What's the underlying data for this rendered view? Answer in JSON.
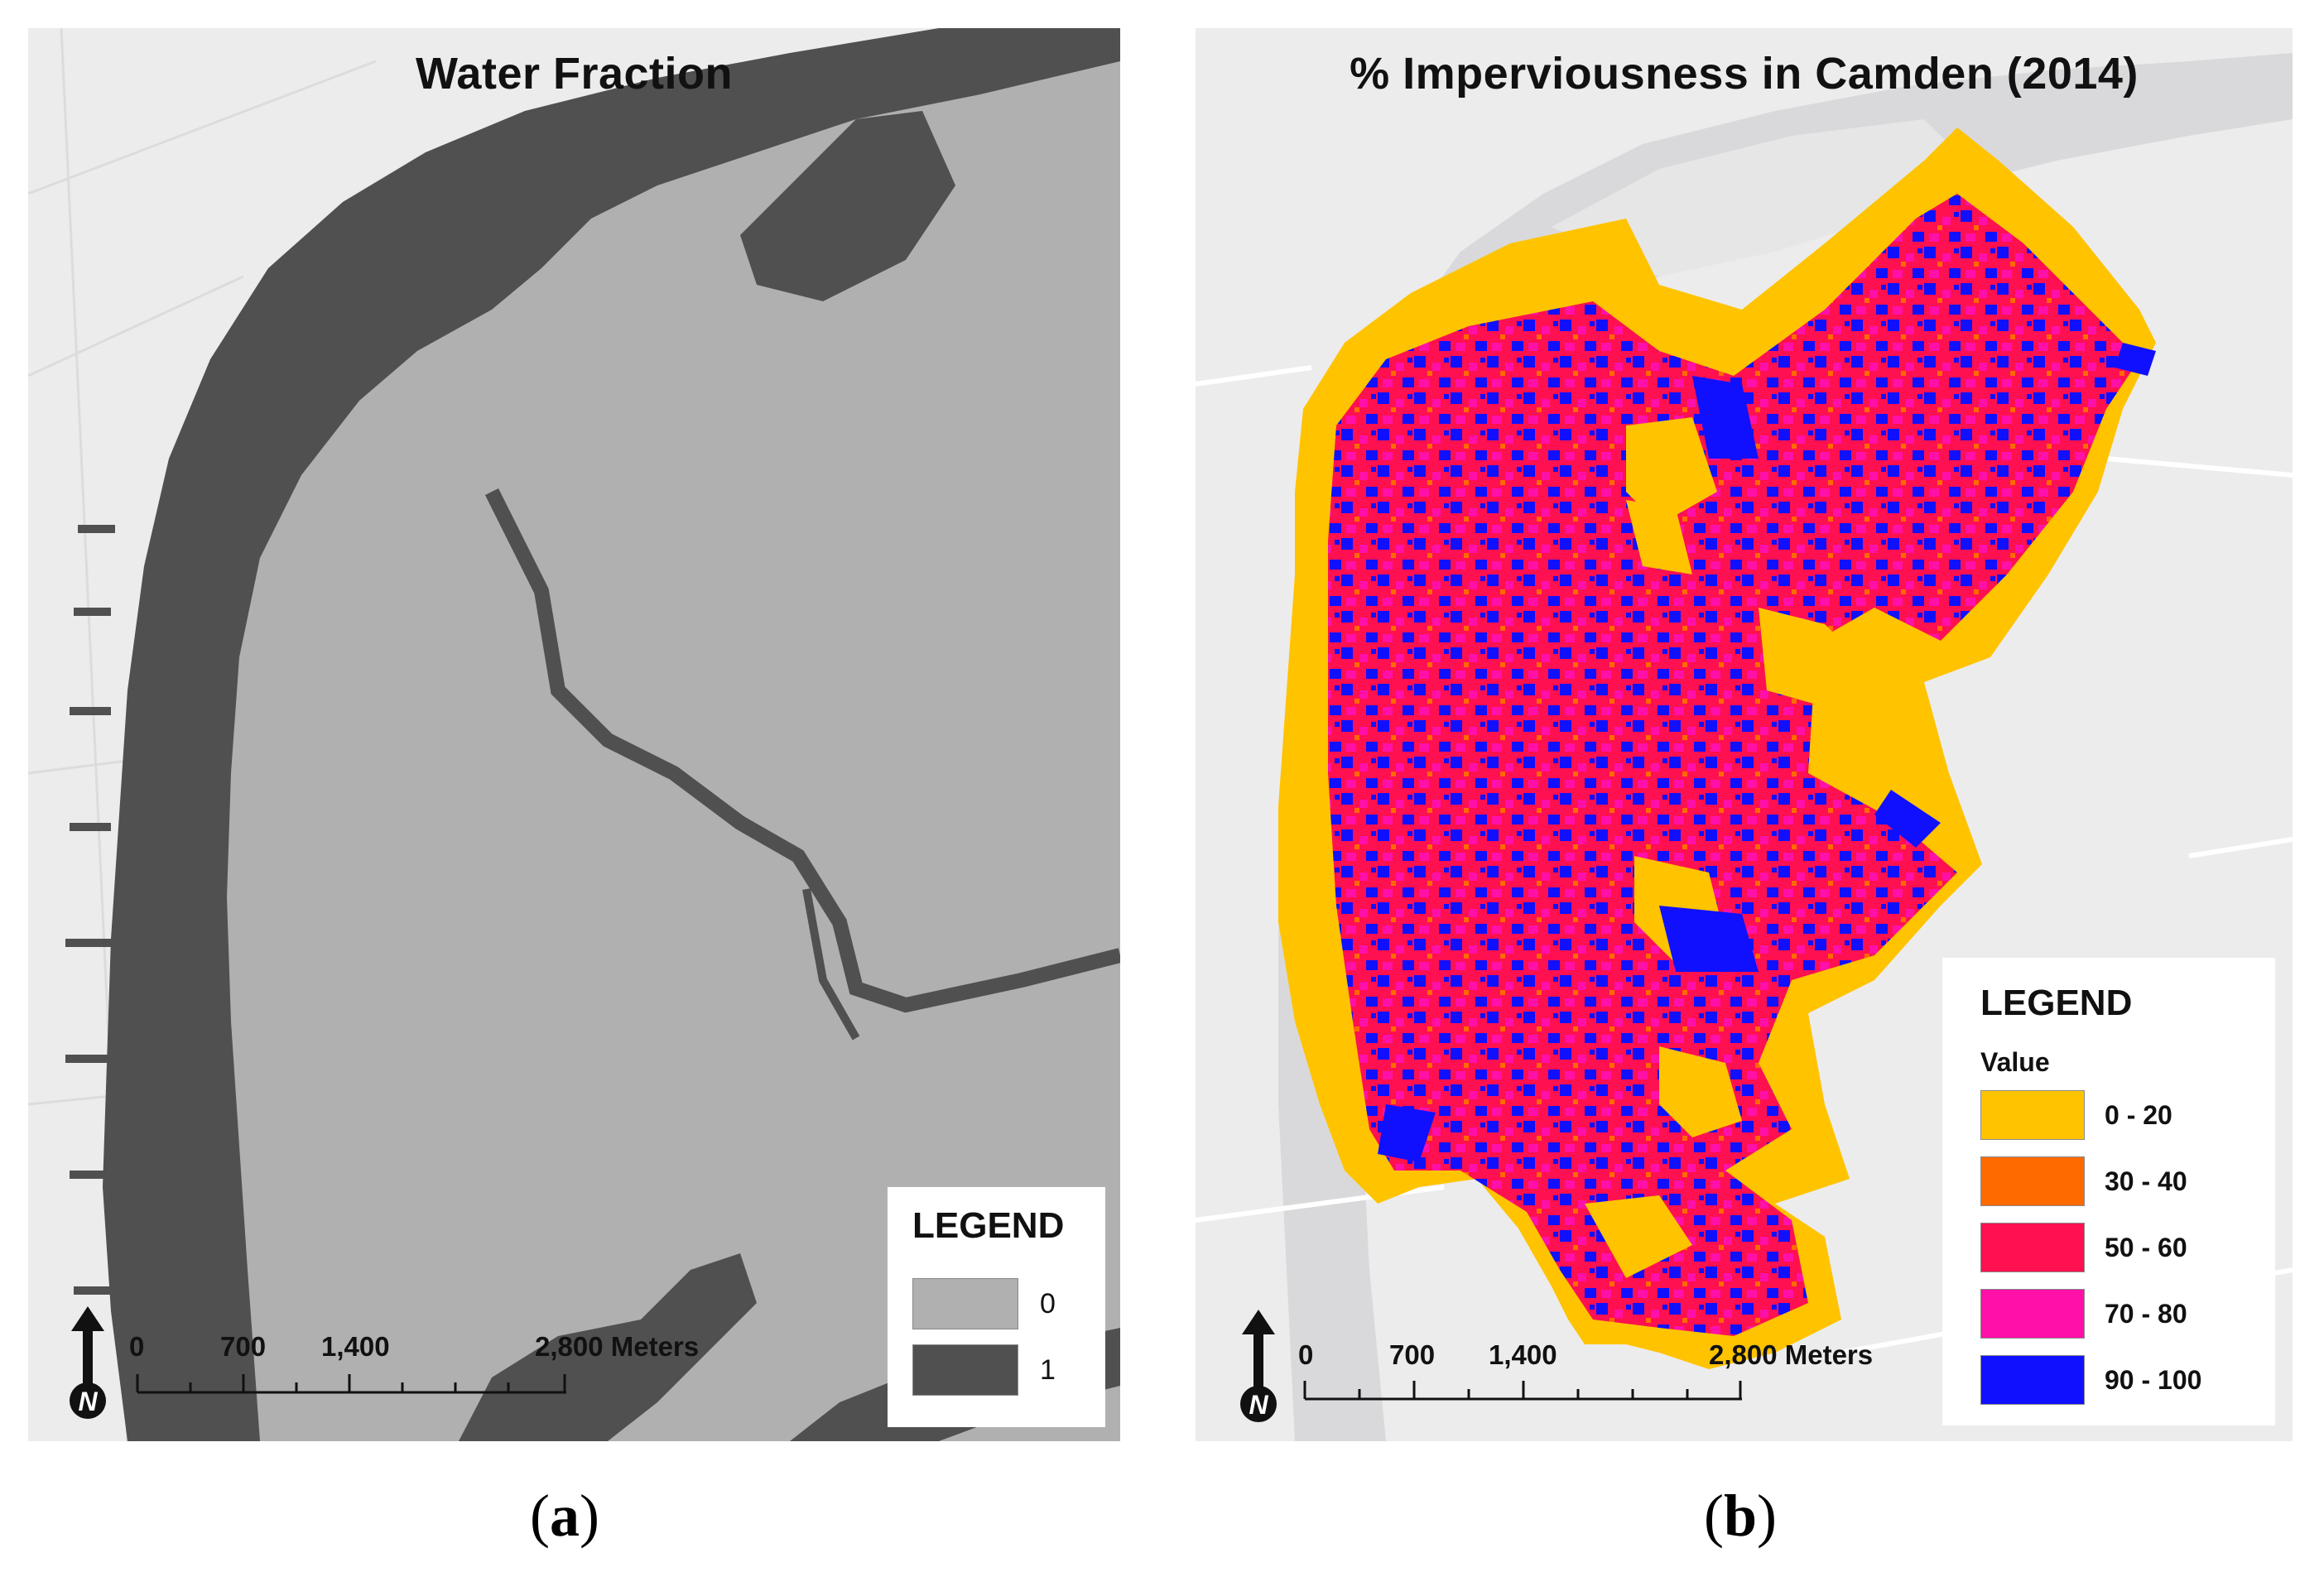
{
  "panel_a": {
    "title": "Water Fraction",
    "legend": {
      "title": "LEGEND",
      "items": [
        {
          "label": "0",
          "color": "#b0b0b0"
        },
        {
          "label": "1",
          "color": "#505050"
        }
      ]
    },
    "scale": {
      "ticks": [
        "0",
        "700",
        "1,400",
        "2,800 Meters"
      ]
    },
    "north_label": "N",
    "caption": {
      "open": "(",
      "letter": "a",
      "close": ")"
    }
  },
  "panel_b": {
    "title": "% Imperviousness in Camden (2014)",
    "legend": {
      "title": "LEGEND",
      "subtitle": "Value",
      "items": [
        {
          "label": "0 - 20",
          "color": "#ffc300"
        },
        {
          "label": "30 - 40",
          "color": "#ff6a00"
        },
        {
          "label": "50 - 60",
          "color": "#ff1050"
        },
        {
          "label": "70 - 80",
          "color": "#ff10a8"
        },
        {
          "label": "90 - 100",
          "color": "#1010ff"
        }
      ]
    },
    "scale": {
      "ticks": [
        "0",
        "700",
        "1,400",
        "2,800 Meters"
      ]
    },
    "north_label": "N",
    "caption": {
      "open": "(",
      "letter": "b",
      "close": ")"
    }
  },
  "colors": {
    "basemap": "#ececec",
    "land_fraction": "#b0b0b0",
    "water_fraction": "#505050",
    "river_basemap": "#d9d9dc"
  }
}
